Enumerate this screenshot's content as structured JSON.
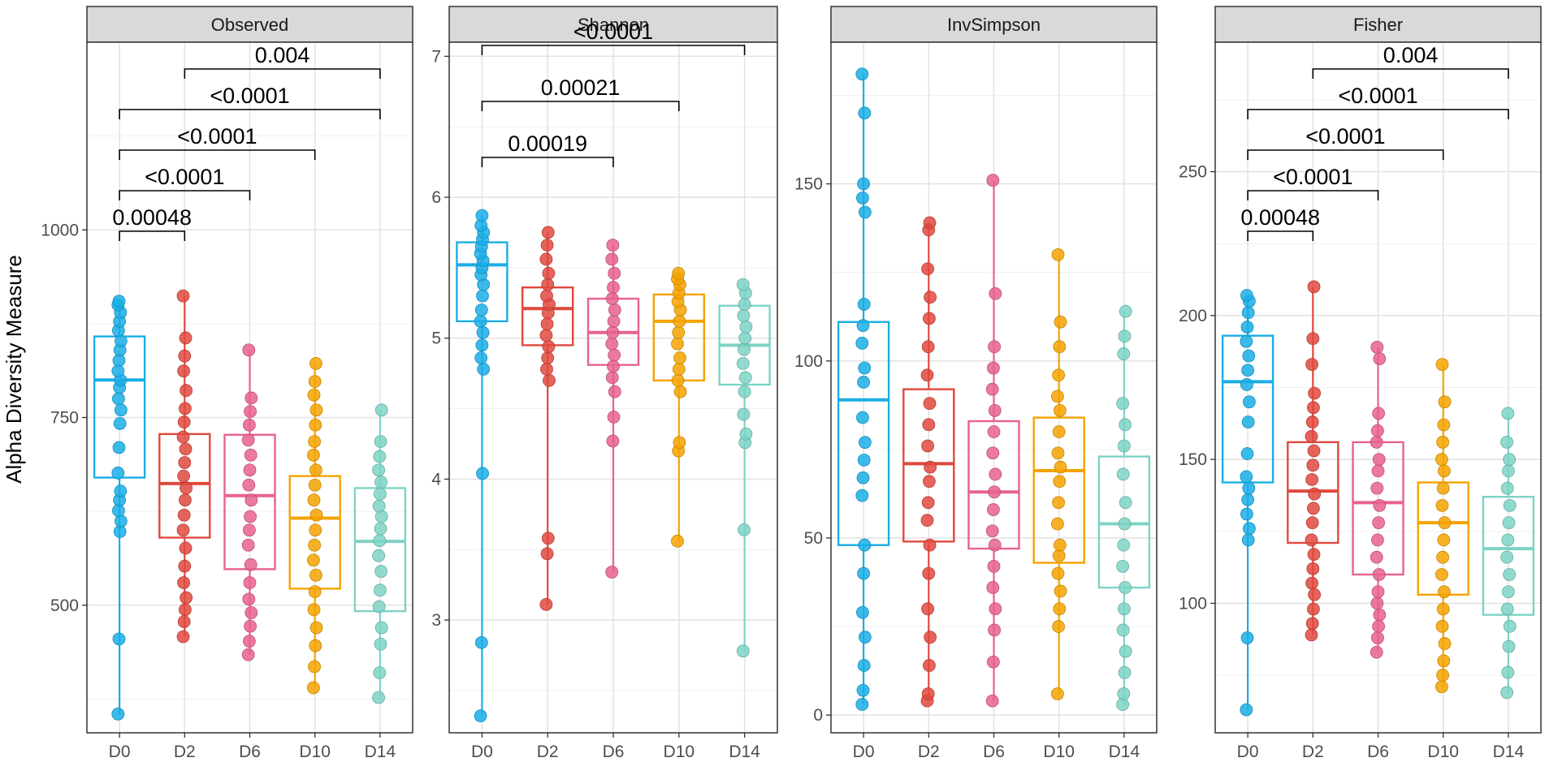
{
  "chart_data": {
    "type": "box",
    "ylabel": "Alpha Diversity Measure",
    "groups": [
      "D0",
      "D2",
      "D6",
      "D10",
      "D14"
    ],
    "colors": {
      "D0": "#1aaee6",
      "D2": "#e0493e",
      "D6": "#e8628f",
      "D10": "#f4a300",
      "D14": "#7dd3c5"
    },
    "facets": [
      {
        "title": "Observed",
        "ylim": [
          330,
          1250
        ],
        "yticks": [
          500,
          750,
          1000
        ],
        "boxes": [
          {
            "group": "D0",
            "q1": 670,
            "median": 800,
            "q3": 858,
            "whisker_low": 355,
            "whisker_high": 905
          },
          {
            "group": "D2",
            "q1": 590,
            "median": 662,
            "q3": 728,
            "whisker_low": 458,
            "whisker_high": 912
          },
          {
            "group": "D6",
            "q1": 548,
            "median": 646,
            "q3": 727,
            "whisker_low": 434,
            "whisker_high": 840
          },
          {
            "group": "D10",
            "q1": 522,
            "median": 616,
            "q3": 672,
            "whisker_low": 390,
            "whisker_high": 822
          },
          {
            "group": "D14",
            "q1": 492,
            "median": 585,
            "q3": 656,
            "whisker_low": 377,
            "whisker_high": 760
          }
        ],
        "points": {
          "D0": [
            355,
            455,
            598,
            612,
            626,
            640,
            652,
            676,
            710,
            742,
            760,
            775,
            790,
            800,
            812,
            826,
            840,
            852,
            866,
            878,
            890,
            900,
            905
          ],
          "D2": [
            458,
            478,
            494,
            510,
            530,
            552,
            576,
            600,
            620,
            640,
            656,
            672,
            690,
            708,
            724,
            744,
            762,
            786,
            812,
            832,
            856,
            912
          ],
          "D6": [
            434,
            452,
            472,
            490,
            508,
            530,
            554,
            580,
            600,
            618,
            640,
            660,
            680,
            700,
            720,
            740,
            758,
            776,
            840
          ],
          "D10": [
            390,
            418,
            446,
            470,
            494,
            518,
            540,
            560,
            580,
            600,
            620,
            640,
            660,
            680,
            700,
            718,
            740,
            760,
            780,
            798,
            822
          ],
          "D14": [
            377,
            410,
            448,
            470,
            498,
            520,
            545,
            566,
            586,
            602,
            618,
            632,
            648,
            664,
            680,
            698,
            718,
            760
          ]
        },
        "comparisons": [
          {
            "from": "D0",
            "to": "D2",
            "label": "0.00048"
          },
          {
            "from": "D0",
            "to": "D6",
            "label": "<0.0001"
          },
          {
            "from": "D0",
            "to": "D10",
            "label": "<0.0001"
          },
          {
            "from": "D0",
            "to": "D14",
            "label": "<0.0001"
          },
          {
            "from": "D2",
            "to": "D14",
            "label": "0.004"
          }
        ]
      },
      {
        "title": "Shannon",
        "ylim": [
          2.2,
          7.1
        ],
        "yticks": [
          3,
          4,
          5,
          6,
          7
        ],
        "boxes": [
          {
            "group": "D0",
            "q1": 5.12,
            "median": 5.52,
            "q3": 5.68,
            "whisker_low": 2.32,
            "whisker_high": 5.87
          },
          {
            "group": "D2",
            "q1": 4.95,
            "median": 5.21,
            "q3": 5.36,
            "whisker_low": 3.11,
            "whisker_high": 5.75
          },
          {
            "group": "D6",
            "q1": 4.81,
            "median": 5.04,
            "q3": 5.28,
            "whisker_low": 3.34,
            "whisker_high": 5.66
          },
          {
            "group": "D10",
            "q1": 4.7,
            "median": 5.12,
            "q3": 5.31,
            "whisker_low": 3.56,
            "whisker_high": 5.46
          },
          {
            "group": "D14",
            "q1": 4.67,
            "median": 4.95,
            "q3": 5.23,
            "whisker_low": 2.78,
            "whisker_high": 5.38
          }
        ],
        "points": {
          "D0": [
            2.32,
            2.84,
            4.04,
            4.78,
            4.86,
            4.95,
            5.04,
            5.12,
            5.2,
            5.3,
            5.38,
            5.45,
            5.5,
            5.55,
            5.6,
            5.65,
            5.7,
            5.75,
            5.8,
            5.87
          ],
          "D2": [
            3.11,
            3.47,
            3.58,
            4.7,
            4.78,
            4.86,
            4.94,
            5.02,
            5.1,
            5.18,
            5.24,
            5.3,
            5.38,
            5.46,
            5.56,
            5.66,
            5.75
          ],
          "D6": [
            3.34,
            4.27,
            4.44,
            4.62,
            4.72,
            4.8,
            4.88,
            4.96,
            5.04,
            5.12,
            5.2,
            5.28,
            5.36,
            5.46,
            5.56,
            5.66
          ],
          "D10": [
            3.56,
            4.2,
            4.26,
            4.62,
            4.7,
            4.78,
            4.86,
            4.96,
            5.04,
            5.12,
            5.2,
            5.26,
            5.32,
            5.38,
            5.42,
            5.46
          ],
          "D14": [
            2.78,
            3.64,
            4.26,
            4.32,
            4.46,
            4.62,
            4.72,
            4.82,
            4.92,
            5.0,
            5.08,
            5.16,
            5.24,
            5.32,
            5.38
          ]
        },
        "comparisons": [
          {
            "from": "D0",
            "to": "D6",
            "label": "0.00019"
          },
          {
            "from": "D0",
            "to": "D10",
            "label": "0.00021"
          },
          {
            "from": "D0",
            "to": "D14",
            "label": "<0.0001"
          }
        ]
      },
      {
        "title": "InvSimpson",
        "ylim": [
          -5,
          190
        ],
        "yticks": [
          0,
          50,
          100,
          150
        ],
        "boxes": [
          {
            "group": "D0",
            "q1": 48,
            "median": 89,
            "q3": 111,
            "whisker_low": 3,
            "whisker_high": 181
          },
          {
            "group": "D2",
            "q1": 49,
            "median": 71,
            "q3": 92,
            "whisker_low": 4,
            "whisker_high": 139
          },
          {
            "group": "D6",
            "q1": 47,
            "median": 63,
            "q3": 83,
            "whisker_low": 4,
            "whisker_high": 151
          },
          {
            "group": "D10",
            "q1": 43,
            "median": 69,
            "q3": 84,
            "whisker_low": 6,
            "whisker_high": 130
          },
          {
            "group": "D14",
            "q1": 36,
            "median": 54,
            "q3": 73,
            "whisker_low": 3,
            "whisker_high": 114
          }
        ],
        "points": {
          "D0": [
            3,
            7,
            14,
            22,
            29,
            40,
            48,
            62,
            67,
            72,
            77,
            84,
            94,
            98,
            105,
            110,
            116,
            142,
            146,
            150,
            170,
            181
          ],
          "D2": [
            4,
            6,
            14,
            22,
            30,
            40,
            48,
            55,
            60,
            66,
            70,
            76,
            82,
            88,
            96,
            104,
            112,
            118,
            126,
            137,
            139
          ],
          "D6": [
            4,
            15,
            24,
            30,
            36,
            42,
            48,
            52,
            58,
            63,
            68,
            74,
            80,
            86,
            92,
            98,
            104,
            119,
            151
          ],
          "D10": [
            6,
            25,
            30,
            35,
            40,
            45,
            48,
            54,
            60,
            66,
            70,
            74,
            80,
            86,
            90,
            96,
            104,
            111,
            130
          ],
          "D14": [
            3,
            6,
            12,
            18,
            24,
            30,
            36,
            42,
            48,
            54,
            60,
            68,
            76,
            82,
            88,
            102,
            107,
            114
          ]
        },
        "comparisons": []
      },
      {
        "title": "Fisher",
        "ylim": [
          55,
          295
        ],
        "yticks": [
          100,
          150,
          200,
          250
        ],
        "boxes": [
          {
            "group": "D0",
            "q1": 142,
            "median": 177,
            "q3": 193,
            "whisker_low": 63,
            "whisker_high": 207
          },
          {
            "group": "D2",
            "q1": 121,
            "median": 139,
            "q3": 156,
            "whisker_low": 89,
            "whisker_high": 210
          },
          {
            "group": "D6",
            "q1": 110,
            "median": 135,
            "q3": 156,
            "whisker_low": 83,
            "whisker_high": 189
          },
          {
            "group": "D10",
            "q1": 103,
            "median": 128,
            "q3": 142,
            "whisker_low": 71,
            "whisker_high": 183
          },
          {
            "group": "D14",
            "q1": 96,
            "median": 119,
            "q3": 137,
            "whisker_low": 69,
            "whisker_high": 166
          }
        ],
        "points": {
          "D0": [
            63,
            88,
            122,
            126,
            131,
            136,
            140,
            144,
            152,
            163,
            170,
            176,
            181,
            186,
            191,
            196,
            201,
            205,
            207
          ],
          "D2": [
            89,
            93,
            98,
            103,
            107,
            112,
            117,
            122,
            128,
            133,
            138,
            143,
            148,
            153,
            158,
            163,
            168,
            173,
            183,
            192,
            210
          ],
          "D6": [
            83,
            88,
            92,
            96,
            100,
            104,
            110,
            116,
            122,
            128,
            134,
            140,
            146,
            150,
            156,
            160,
            166,
            185,
            189
          ],
          "D10": [
            71,
            75,
            80,
            86,
            92,
            98,
            104,
            110,
            116,
            122,
            128,
            134,
            140,
            146,
            150,
            156,
            162,
            170,
            183
          ],
          "D14": [
            69,
            76,
            85,
            92,
            98,
            104,
            110,
            116,
            122,
            128,
            134,
            140,
            146,
            150,
            156,
            166
          ]
        },
        "comparisons": [
          {
            "from": "D0",
            "to": "D2",
            "label": "0.00048"
          },
          {
            "from": "D0",
            "to": "D6",
            "label": "<0.0001"
          },
          {
            "from": "D0",
            "to": "D10",
            "label": "<0.0001"
          },
          {
            "from": "D0",
            "to": "D14",
            "label": "<0.0001"
          },
          {
            "from": "D2",
            "to": "D14",
            "label": "0.004"
          }
        ]
      }
    ]
  }
}
